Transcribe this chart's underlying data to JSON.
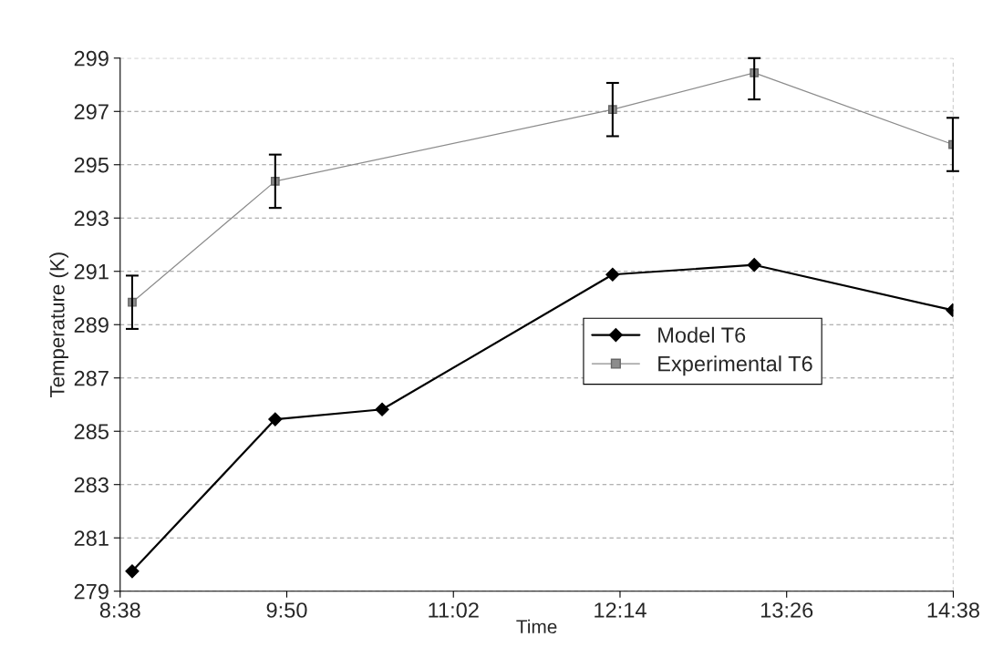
{
  "chart_data": {
    "type": "line",
    "xlabel": "Time",
    "ylabel": "Temperature (K)",
    "series": [
      {
        "name": "Model T6",
        "color": "#000000",
        "marker": "diamond",
        "x": [
          8.72,
          9.75,
          10.52,
          12.18,
          13.2,
          14.63
        ],
        "values": [
          279.75,
          285.45,
          285.82,
          290.88,
          291.24,
          289.54
        ]
      },
      {
        "name": "Experimental T6",
        "color": "#8c8c8c",
        "marker": "square",
        "x": [
          8.72,
          9.75,
          12.18,
          13.2,
          14.63
        ],
        "values": [
          289.84,
          294.38,
          297.07,
          298.45,
          295.76
        ],
        "errors": [
          1,
          1,
          1,
          [
            297.45,
            299
          ],
          1
        ]
      }
    ],
    "xlim": [
      8.6333,
      14.6333
    ],
    "xticks": [
      {
        "value": 8.6333,
        "label": "8:38"
      },
      {
        "value": 9.8333,
        "label": "9:50"
      },
      {
        "value": 11.0333,
        "label": "11:02"
      },
      {
        "value": 12.2333,
        "label": "12:14"
      },
      {
        "value": 13.4333,
        "label": "13:26"
      },
      {
        "value": 14.6333,
        "label": "14:38"
      }
    ],
    "ylim": [
      279,
      299
    ],
    "yticks": [
      279,
      281,
      283,
      285,
      287,
      289,
      291,
      293,
      295,
      297,
      299
    ],
    "grid": "y",
    "legend": "right"
  }
}
